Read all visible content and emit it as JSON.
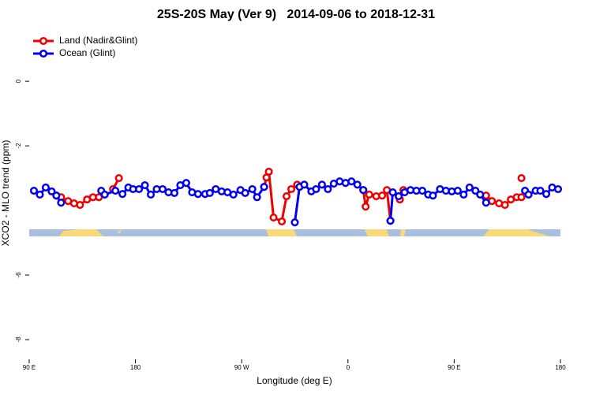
{
  "chart_data": {
    "type": "line",
    "title": "25S-20S May (Ver 9)   2014-09-06 to 2018-12-31",
    "xlabel": "Longitude (deg E)",
    "ylabel": "XCO2 - MLO trend (ppm)",
    "xlim": [
      90,
      540
    ],
    "ylim": [
      -8.61,
      1.54
    ],
    "xticks": [
      {
        "value": 90,
        "label": "90 E"
      },
      180,
      {
        "value": 270,
        "label": "90 W"
      },
      {
        "value": 360,
        "label": "0"
      },
      {
        "value": 450,
        "label": "90 E"
      },
      {
        "value": 540,
        "label": "180"
      }
    ],
    "yticks": [
      0,
      -2,
      -6,
      -8
    ],
    "legend": "top-left",
    "series": [
      {
        "name": "Land (Nadir&Glint)",
        "color": "#ee0000",
        "x": [
          113,
          117,
          123,
          128,
          133,
          139,
          144,
          149,
          null,
          161,
          166,
          null,
          289,
          291,
          293,
          297,
          304,
          308,
          312,
          317,
          null,
          373,
          375,
          378,
          384,
          389,
          393,
          396,
          null,
          403,
          404,
          407,
          null,
          477,
          482,
          488,
          493,
          498,
          503,
          507,
          null,
          507
        ],
        "values": [
          -3.54,
          -3.59,
          -3.71,
          -3.78,
          -3.83,
          -3.66,
          -3.59,
          -3.59,
          null,
          -3.34,
          -3.0,
          null,
          -3.27,
          -2.98,
          -2.8,
          -4.22,
          -4.34,
          -3.56,
          -3.34,
          -3.2,
          null,
          -3.37,
          -3.88,
          -3.51,
          -3.56,
          -3.54,
          -3.37,
          -4.32,
          null,
          -3.56,
          -3.66,
          -3.37,
          null,
          -3.54,
          -3.71,
          -3.78,
          -3.83,
          -3.66,
          -3.59,
          -3.59,
          null,
          -3.0
        ]
      },
      {
        "name": "Ocean (Glint)",
        "color": "#0000ee",
        "x": [
          94,
          99,
          104,
          109,
          113,
          117,
          null,
          151,
          154,
          163,
          169,
          174,
          178,
          183,
          188,
          193,
          198,
          203,
          208,
          213,
          218,
          223,
          228,
          233,
          239,
          243,
          248,
          253,
          258,
          263,
          269,
          273,
          279,
          283,
          289,
          null,
          315,
          319,
          323,
          329,
          333,
          338,
          343,
          348,
          353,
          358,
          363,
          368,
          373,
          null,
          396,
          398,
          403,
          408,
          413,
          418,
          423,
          428,
          432,
          438,
          443,
          448,
          453,
          458,
          463,
          468,
          472,
          477,
          null,
          510,
          513,
          519,
          523,
          528,
          533,
          538
        ],
        "values": [
          -3.39,
          -3.51,
          -3.29,
          -3.41,
          -3.54,
          -3.76,
          null,
          -3.39,
          -3.51,
          -3.39,
          -3.49,
          -3.29,
          -3.34,
          -3.34,
          -3.22,
          -3.51,
          -3.34,
          -3.34,
          -3.44,
          -3.46,
          -3.22,
          -3.15,
          -3.44,
          -3.49,
          -3.49,
          -3.46,
          -3.34,
          -3.41,
          -3.44,
          -3.51,
          -3.37,
          -3.46,
          -3.34,
          -3.59,
          -3.27,
          null,
          -4.37,
          -3.27,
          -3.2,
          -3.41,
          -3.34,
          -3.2,
          -3.34,
          -3.17,
          -3.1,
          -3.15,
          -3.1,
          -3.2,
          -3.37,
          null,
          -4.32,
          -3.44,
          -3.56,
          -3.44,
          -3.37,
          -3.39,
          -3.39,
          -3.51,
          -3.54,
          -3.34,
          -3.39,
          -3.41,
          -3.39,
          -3.51,
          -3.29,
          -3.39,
          -3.51,
          -3.76,
          null,
          -3.39,
          -3.51,
          -3.39,
          -3.39,
          -3.49,
          -3.29,
          -3.34
        ]
      }
    ]
  }
}
